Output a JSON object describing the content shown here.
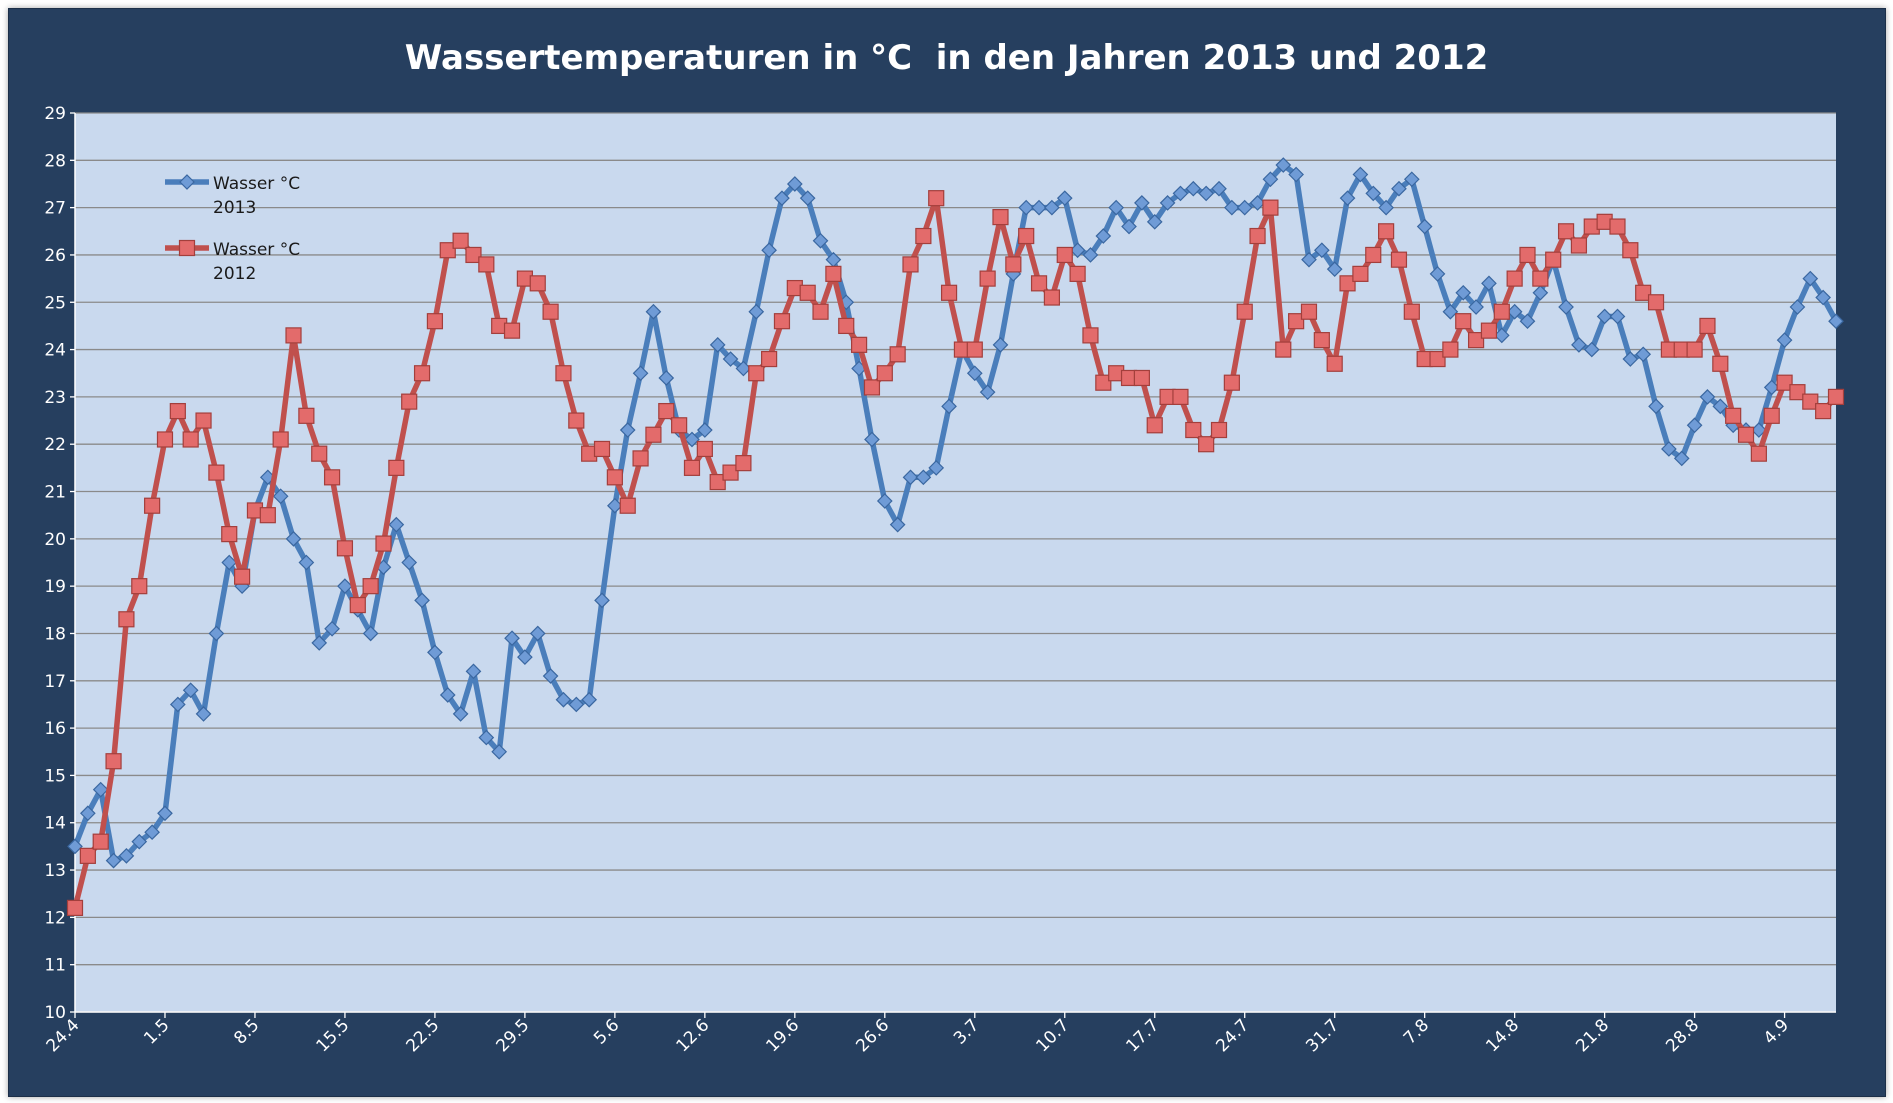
{
  "chart_data": {
    "type": "line",
    "title": "Wassertemperaturen in °C  in den Jahren 2013 und 2012",
    "xlabel": "",
    "ylabel": "",
    "ylim": [
      10,
      29
    ],
    "yticks": [
      10,
      11,
      12,
      13,
      14,
      15,
      16,
      17,
      18,
      19,
      20,
      21,
      22,
      23,
      24,
      25,
      26,
      27,
      28,
      29
    ],
    "grid": true,
    "legend_position": "top-left",
    "x_start_label": "24.4",
    "x_tick_labels": [
      "24.4",
      "1.5",
      "8.5",
      "15.5",
      "22.5",
      "29.5",
      "5.6",
      "12.6",
      "19.6",
      "26.6",
      "3.7",
      "10.7",
      "17.7",
      "24.7",
      "31.7",
      "7.8",
      "14.8",
      "21.8",
      "28.8",
      "4.9"
    ],
    "tick_step_days": 7,
    "plot_bg": "#c9d9ee",
    "frame_bg": "#263f5f",
    "series": [
      {
        "name": "Wasser °C 2013",
        "color": "#4a7ebb",
        "marker": "diamond",
        "values": [
          13.5,
          14.2,
          14.7,
          13.2,
          13.3,
          13.6,
          13.8,
          14.2,
          16.5,
          16.8,
          16.3,
          18.0,
          19.5,
          19.0,
          20.6,
          21.3,
          20.9,
          20.0,
          19.5,
          17.8,
          18.1,
          19.0,
          18.5,
          18.0,
          19.4,
          20.3,
          19.5,
          18.7,
          17.6,
          16.7,
          16.3,
          17.2,
          15.8,
          15.5,
          17.9,
          17.5,
          18.0,
          17.1,
          16.6,
          16.5,
          16.6,
          18.7,
          20.7,
          22.3,
          23.5,
          24.8,
          23.4,
          22.3,
          22.1,
          22.3,
          24.1,
          23.8,
          23.6,
          24.8,
          26.1,
          27.2,
          27.5,
          27.2,
          26.3,
          25.9,
          25.0,
          23.6,
          22.1,
          20.8,
          20.3,
          21.3,
          21.3,
          21.5,
          22.8,
          24.0,
          23.5,
          23.1,
          24.1,
          25.6,
          27.0,
          27.0,
          27.0,
          27.2,
          26.1,
          26.0,
          26.4,
          27.0,
          26.6,
          27.1,
          26.7,
          27.1,
          27.3,
          27.4,
          27.3,
          27.4,
          27.0,
          27.0,
          27.1,
          27.6,
          27.9,
          27.7,
          25.9,
          26.1,
          25.7,
          27.2,
          27.7,
          27.3,
          27.0,
          27.4,
          27.6,
          26.6,
          25.6,
          24.8,
          25.2,
          24.9,
          25.4,
          24.3,
          24.8,
          24.6,
          25.2,
          25.9,
          24.9,
          24.1,
          24.0,
          24.7,
          24.7,
          23.8,
          23.9,
          22.8,
          21.9,
          21.7,
          22.4,
          23.0,
          22.8,
          22.4,
          22.3,
          22.3,
          23.2,
          24.2,
          24.9,
          25.5,
          25.1,
          24.6
        ]
      },
      {
        "name": "Wasser °C 2012",
        "color": "#c0504d",
        "marker": "square",
        "values": [
          12.2,
          13.3,
          13.6,
          15.3,
          18.3,
          19.0,
          20.7,
          22.1,
          22.7,
          22.1,
          22.5,
          21.4,
          20.1,
          19.2,
          20.6,
          20.5,
          22.1,
          24.3,
          22.6,
          21.8,
          21.3,
          19.8,
          18.6,
          19.0,
          19.9,
          21.5,
          22.9,
          23.5,
          24.6,
          26.1,
          26.3,
          26.0,
          25.8,
          24.5,
          24.4,
          25.5,
          25.4,
          24.8,
          23.5,
          22.5,
          21.8,
          21.9,
          21.3,
          20.7,
          21.7,
          22.2,
          22.7,
          22.4,
          21.5,
          21.9,
          21.2,
          21.4,
          21.6,
          23.5,
          23.8,
          24.6,
          25.3,
          25.2,
          24.8,
          25.6,
          24.5,
          24.1,
          23.2,
          23.5,
          23.9,
          25.8,
          26.4,
          27.2,
          25.2,
          24.0,
          24.0,
          25.5,
          26.8,
          25.8,
          26.4,
          25.4,
          25.1,
          26.0,
          25.6,
          24.3,
          23.3,
          23.5,
          23.4,
          23.4,
          22.4,
          23.0,
          23.0,
          22.3,
          22.0,
          22.3,
          23.3,
          24.8,
          26.4,
          27.0,
          24.0,
          24.6,
          24.8,
          24.2,
          23.7,
          25.4,
          25.6,
          26.0,
          26.5,
          25.9,
          24.8,
          23.8,
          23.8,
          24.0,
          24.6,
          24.2,
          24.4,
          24.8,
          25.5,
          26.0,
          25.5,
          25.9,
          26.5,
          26.2,
          26.6,
          26.7,
          26.6,
          26.1,
          25.2,
          25.0,
          24.0,
          24.0,
          24.0,
          24.5,
          23.7,
          22.6,
          22.2,
          21.8,
          22.6,
          23.3,
          23.1,
          22.9,
          22.7,
          23.0
        ]
      }
    ]
  }
}
